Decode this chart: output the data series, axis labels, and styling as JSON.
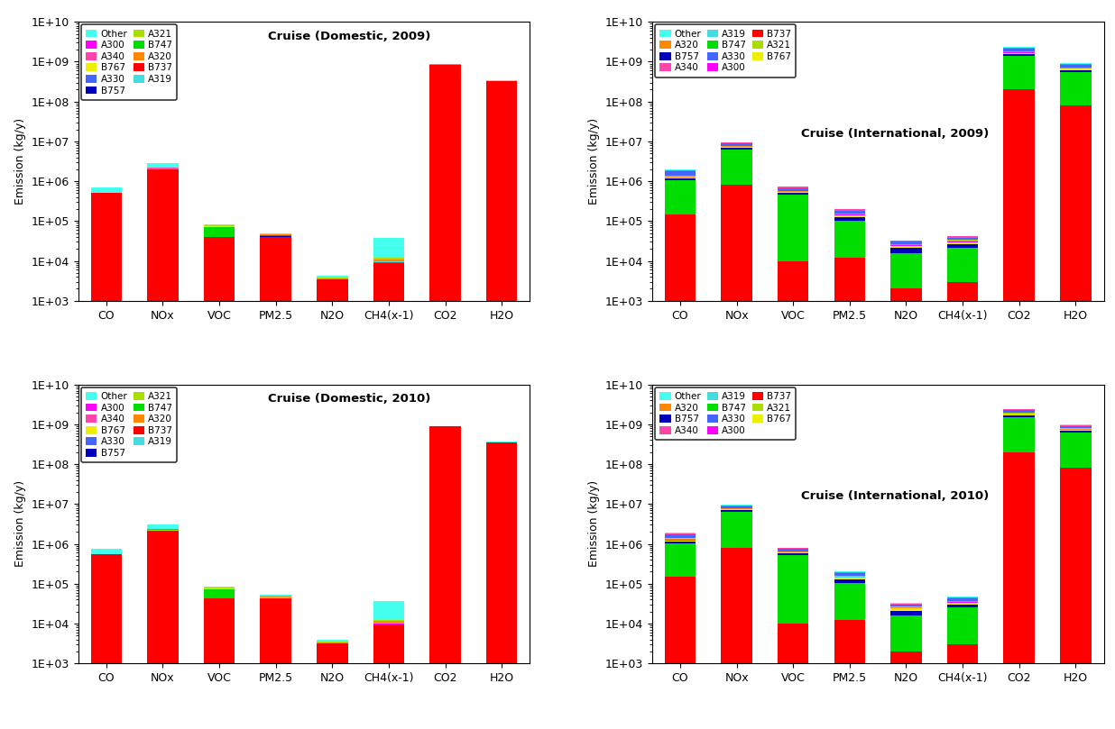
{
  "titles": [
    "Cruise (Domestic, 2009)",
    "Cruise (International, 2009)",
    "Cruise (Domestic, 2010)",
    "Cruise (International, 2010)"
  ],
  "categories": [
    "CO",
    "NOx",
    "VOC",
    "PM2.5",
    "N2O",
    "CH4(x-1)",
    "CO2",
    "H2O"
  ],
  "ylabel": "Emission (kg/y)",
  "colors": {
    "B737": "#FF0000",
    "B747": "#00DD00",
    "B757": "#0000BB",
    "B767": "#EEEE00",
    "A300": "#FF00FF",
    "A319": "#44DDDD",
    "A320": "#FF8800",
    "A321": "#AADD00",
    "A330": "#4466FF",
    "A340": "#FF44AA",
    "Other": "#44FFEE"
  },
  "stack_order": [
    "B737",
    "B747",
    "B757",
    "B767",
    "A300",
    "A319",
    "A320",
    "A321",
    "A330",
    "A340",
    "Other"
  ],
  "data": {
    "domestic_2009": {
      "CO": {
        "B737": 500000,
        "B747": 0,
        "B757": 0,
        "B767": 0,
        "A300": 0,
        "A319": 0,
        "A320": 4000,
        "A321": 4000,
        "A330": 0,
        "A340": 0,
        "Other": 200000
      },
      "NOx": {
        "B737": 2000000,
        "B747": 0,
        "B757": 0,
        "B767": 0,
        "A300": 0,
        "A319": 0,
        "A320": 50000,
        "A321": 50000,
        "A330": 0,
        "A340": 100000,
        "Other": 700000
      },
      "VOC": {
        "B737": 40000,
        "B747": 30000,
        "B757": 2000,
        "B767": 1000,
        "A300": 0,
        "A319": 0,
        "A320": 3000,
        "A321": 3000,
        "A330": 0,
        "A340": 0,
        "Other": 5000
      },
      "PM2.5": {
        "B737": 40000,
        "B747": 0,
        "B757": 2000,
        "B767": 1000,
        "A300": 500,
        "A319": 500,
        "A320": 1500,
        "A321": 1500,
        "A330": 0,
        "A340": 0,
        "Other": 3000
      },
      "N2O": {
        "B737": 3500,
        "B747": 0,
        "B757": 0,
        "B767": 0,
        "A300": 0,
        "A319": 0,
        "A320": 200,
        "A321": 200,
        "A330": 0,
        "A340": 0,
        "Other": 300
      },
      "CH4(x-1)": {
        "B737": 9000,
        "B747": 0,
        "B757": 0,
        "B767": 0,
        "A300": 500,
        "A319": 500,
        "A320": 1000,
        "A321": 1000,
        "A330": 0,
        "A340": 0,
        "Other": 25000
      },
      "CO2": {
        "B737": 850000000,
        "B747": 0,
        "B757": 0,
        "B767": 0,
        "A300": 0,
        "A319": 0,
        "A320": 5000000,
        "A321": 5000000,
        "A330": 0,
        "A340": 0,
        "Other": 20000000
      },
      "H2O": {
        "B737": 330000000,
        "B747": 0,
        "B757": 0,
        "B767": 0,
        "A300": 0,
        "A319": 0,
        "A320": 2000000,
        "A321": 2000000,
        "A330": 0,
        "A340": 0,
        "Other": 8000000
      }
    },
    "international_2009": {
      "CO": {
        "B737": 150000,
        "B747": 900000,
        "B757": 100000,
        "B767": 80000,
        "A300": 30000,
        "A319": 10000,
        "A320": 60000,
        "A321": 40000,
        "A330": 400000,
        "A340": 100000,
        "Other": 100000
      },
      "NOx": {
        "B737": 800000,
        "B747": 5500000,
        "B757": 600000,
        "B767": 350000,
        "A300": 100000,
        "A319": 50000,
        "A320": 250000,
        "A321": 180000,
        "A330": 1000000,
        "A340": 500000,
        "Other": 200000
      },
      "VOC": {
        "B737": 10000,
        "B747": 450000,
        "B757": 40000,
        "B767": 30000,
        "A300": 5000,
        "A319": 2000,
        "A320": 20000,
        "A321": 15000,
        "A330": 100000,
        "A340": 50000,
        "Other": 20000
      },
      "PM2.5": {
        "B737": 12000,
        "B747": 90000,
        "B757": 25000,
        "B767": 15000,
        "A300": 3000,
        "A319": 1500,
        "A320": 7000,
        "A321": 5000,
        "A330": 25000,
        "A340": 12000,
        "Other": 7000
      },
      "N2O": {
        "B737": 2000,
        "B747": 14000,
        "B757": 5000,
        "B767": 3000,
        "A300": 500,
        "A319": 200,
        "A320": 1200,
        "A321": 900,
        "A330": 3500,
        "A340": 1800,
        "Other": 900
      },
      "CH4(x-1)": {
        "B737": 3000,
        "B747": 18000,
        "B757": 5000,
        "B767": 3500,
        "A300": 700,
        "A319": 350,
        "A320": 1700,
        "A321": 1300,
        "A330": 5000,
        "A340": 2500,
        "Other": 2000
      },
      "CO2": {
        "B737": 200000000,
        "B747": 1200000000,
        "B757": 180000000,
        "B767": 100000000,
        "A300": 20000000,
        "A319": 10000000,
        "A320": 80000000,
        "A321": 60000000,
        "A330": 280000000,
        "A340": 140000000,
        "Other": 80000000
      },
      "H2O": {
        "B737": 80000000,
        "B747": 470000000,
        "B757": 70000000,
        "B767": 40000000,
        "A300": 8000000,
        "A319": 4000000,
        "A320": 30000000,
        "A321": 24000000,
        "A330": 110000000,
        "A340": 55000000,
        "Other": 30000000
      }
    },
    "domestic_2010": {
      "CO": {
        "B737": 540000,
        "B747": 0,
        "B757": 0,
        "B767": 0,
        "A300": 0,
        "A319": 0,
        "A320": 4000,
        "A321": 4000,
        "A330": 0,
        "A340": 0,
        "Other": 200000
      },
      "NOx": {
        "B737": 2100000,
        "B747": 0,
        "B757": 0,
        "B767": 0,
        "A300": 0,
        "A319": 0,
        "A320": 55000,
        "A321": 55000,
        "A330": 0,
        "A340": 100000,
        "Other": 750000
      },
      "VOC": {
        "B737": 42000,
        "B747": 30000,
        "B757": 2000,
        "B767": 1000,
        "A300": 0,
        "A319": 0,
        "A320": 3000,
        "A321": 3000,
        "A330": 0,
        "A340": 0,
        "Other": 5000
      },
      "PM2.5": {
        "B737": 42000,
        "B747": 0,
        "B757": 2000,
        "B767": 1000,
        "A300": 500,
        "A319": 500,
        "A320": 1500,
        "A321": 1500,
        "A330": 0,
        "A340": 0,
        "Other": 3000
      },
      "N2O": {
        "B737": 3200,
        "B747": 0,
        "B757": 0,
        "B767": 0,
        "A300": 0,
        "A319": 0,
        "A320": 200,
        "A321": 200,
        "A330": 0,
        "A340": 0,
        "Other": 300
      },
      "CH4(x-1)": {
        "B737": 9500,
        "B747": 0,
        "B757": 0,
        "B767": 0,
        "A300": 500,
        "A319": 500,
        "A320": 1000,
        "A321": 1000,
        "A330": 0,
        "A340": 0,
        "Other": 25000
      },
      "CO2": {
        "B737": 880000000,
        "B747": 0,
        "B757": 0,
        "B767": 0,
        "A300": 0,
        "A319": 0,
        "A320": 5000000,
        "A321": 5000000,
        "A330": 0,
        "A340": 0,
        "Other": 20000000
      },
      "H2O": {
        "B737": 350000000,
        "B747": 0,
        "B757": 0,
        "B767": 0,
        "A300": 0,
        "A319": 0,
        "A320": 2000000,
        "A321": 2000000,
        "A330": 0,
        "A340": 0,
        "Other": 8000000
      }
    },
    "international_2010": {
      "CO": {
        "B737": 150000,
        "B747": 900000,
        "B757": 100000,
        "B767": 80000,
        "A300": 30000,
        "A319": 10000,
        "A320": 60000,
        "A321": 40000,
        "A330": 400000,
        "A340": 100000,
        "Other": 100000
      },
      "NOx": {
        "B737": 800000,
        "B747": 5500000,
        "B757": 600000,
        "B767": 350000,
        "A300": 100000,
        "A319": 50000,
        "A320": 250000,
        "A321": 180000,
        "A330": 1000000,
        "A340": 500000,
        "Other": 200000
      },
      "VOC": {
        "B737": 10000,
        "B747": 520000,
        "B757": 40000,
        "B767": 30000,
        "A300": 5000,
        "A319": 2000,
        "A320": 20000,
        "A321": 15000,
        "A330": 100000,
        "A340": 50000,
        "Other": 20000
      },
      "PM2.5": {
        "B737": 12000,
        "B747": 90000,
        "B757": 25000,
        "B767": 15000,
        "A300": 3000,
        "A319": 1500,
        "A320": 7000,
        "A321": 5000,
        "A330": 25000,
        "A340": 12000,
        "Other": 7000
      },
      "N2O": {
        "B737": 2000,
        "B747": 14000,
        "B757": 5000,
        "B767": 3000,
        "A300": 500,
        "A319": 200,
        "A320": 1200,
        "A321": 900,
        "A330": 3500,
        "A340": 1800,
        "Other": 900
      },
      "CH4(x-1)": {
        "B737": 3000,
        "B747": 22000,
        "B757": 5000,
        "B767": 3500,
        "A300": 700,
        "A319": 350,
        "A320": 1700,
        "A321": 1300,
        "A330": 5000,
        "A340": 2500,
        "Other": 2000
      },
      "CO2": {
        "B737": 200000000,
        "B747": 1300000000,
        "B757": 180000000,
        "B767": 100000000,
        "A300": 20000000,
        "A319": 10000000,
        "A320": 80000000,
        "A321": 60000000,
        "A330": 280000000,
        "A340": 140000000,
        "Other": 80000000
      },
      "H2O": {
        "B737": 80000000,
        "B747": 540000000,
        "B757": 70000000,
        "B767": 40000000,
        "A300": 8000000,
        "A319": 4000000,
        "A320": 30000000,
        "A321": 24000000,
        "A330": 110000000,
        "A340": 55000000,
        "Other": 30000000
      }
    }
  },
  "domestic_legend": [
    [
      "Other",
      "#44FFEE"
    ],
    [
      "A300",
      "#FF00FF"
    ],
    [
      "A340",
      "#FF44AA"
    ],
    [
      "B767",
      "#EEEE00"
    ],
    [
      "A330",
      "#4466FF"
    ],
    [
      "B757",
      "#0000BB"
    ],
    [
      "A321",
      "#AADD00"
    ],
    [
      "B747",
      "#00DD00"
    ],
    [
      "A320",
      "#FF8800"
    ],
    [
      "B737",
      "#FF0000"
    ],
    [
      "A319",
      "#44DDDD"
    ]
  ],
  "international_legend": [
    [
      "Other",
      "#44FFEE"
    ],
    [
      "A320",
      "#FF8800"
    ],
    [
      "B757",
      "#0000BB"
    ],
    [
      "A340",
      "#FF44AA"
    ],
    [
      "A319",
      "#44DDDD"
    ],
    [
      "B747",
      "#00DD00"
    ],
    [
      "A330",
      "#4466FF"
    ],
    [
      "A300",
      "#FF00FF"
    ],
    [
      "B737",
      "#FF0000"
    ],
    [
      "A321",
      "#AADD00"
    ],
    [
      "B767",
      "#EEEE00"
    ]
  ]
}
